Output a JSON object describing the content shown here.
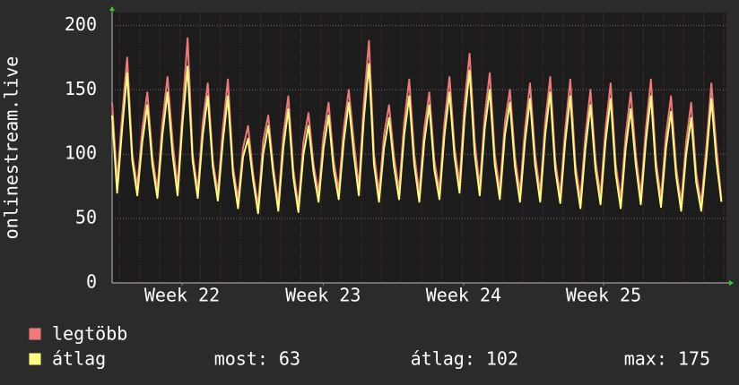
{
  "chart_data": {
    "type": "line",
    "ylabel": "onlinestream.live",
    "xlim": [
      0,
      122
    ],
    "xticks": [
      {
        "value": 13.9,
        "label": "Week 22"
      },
      {
        "value": 41.9,
        "label": "Week 23"
      },
      {
        "value": 69.8,
        "label": "Week 24"
      },
      {
        "value": 97.6,
        "label": "Week 25"
      }
    ],
    "ylim": [
      0,
      210
    ],
    "yticks": [
      0,
      50,
      100,
      150,
      200
    ],
    "grid": true,
    "series": [
      {
        "name": "legtöbb",
        "color": "#f07878",
        "values": [
          140,
          78,
          130,
          175,
          100,
          75,
          120,
          148,
          98,
          72,
          125,
          160,
          110,
          75,
          135,
          190,
          100,
          72,
          125,
          155,
          95,
          70,
          120,
          158,
          90,
          65,
          105,
          122,
          85,
          60,
          110,
          130,
          90,
          62,
          115,
          145,
          88,
          60,
          110,
          132,
          92,
          70,
          115,
          140,
          95,
          72,
          120,
          150,
          110,
          75,
          140,
          188,
          100,
          70,
          115,
          138,
          98,
          72,
          125,
          158,
          100,
          70,
          120,
          148,
          95,
          72,
          125,
          160,
          105,
          78,
          140,
          178,
          110,
          75,
          130,
          163,
          100,
          72,
          125,
          150,
          98,
          70,
          120,
          155,
          100,
          70,
          125,
          160,
          95,
          68,
          120,
          158,
          92,
          65,
          115,
          150,
          95,
          68,
          120,
          155,
          92,
          65,
          115,
          148,
          100,
          68,
          120,
          158,
          95,
          66,
          115,
          145,
          90,
          62,
          110,
          140,
          85,
          62,
          105,
          155,
          105,
          65
        ]
      },
      {
        "name": "átlag",
        "color": "#ffff80",
        "values": [
          130,
          70,
          120,
          163,
          95,
          68,
          110,
          138,
          92,
          66,
          115,
          148,
          100,
          68,
          125,
          168,
          95,
          66,
          115,
          145,
          90,
          64,
          110,
          145,
          85,
          58,
          98,
          112,
          80,
          54,
          100,
          122,
          85,
          56,
          105,
          135,
          82,
          55,
          100,
          122,
          86,
          63,
          105,
          130,
          88,
          65,
          110,
          140,
          100,
          68,
          128,
          170,
          92,
          63,
          105,
          128,
          90,
          65,
          115,
          145,
          92,
          63,
          110,
          138,
          88,
          65,
          115,
          148,
          98,
          70,
          128,
          165,
          100,
          68,
          120,
          150,
          92,
          65,
          115,
          140,
          90,
          63,
          110,
          143,
          92,
          63,
          115,
          148,
          88,
          62,
          110,
          145,
          85,
          58,
          105,
          138,
          88,
          61,
          110,
          143,
          85,
          58,
          105,
          135,
          92,
          61,
          110,
          145,
          88,
          59,
          105,
          133,
          83,
          56,
          100,
          128,
          78,
          56,
          96,
          143,
          95,
          63
        ],
        "stats": [
          {
            "label": "most:",
            "value": 63
          },
          {
            "label": "átlag:",
            "value": 102
          },
          {
            "label": "max:",
            "value": 175
          }
        ]
      }
    ]
  }
}
